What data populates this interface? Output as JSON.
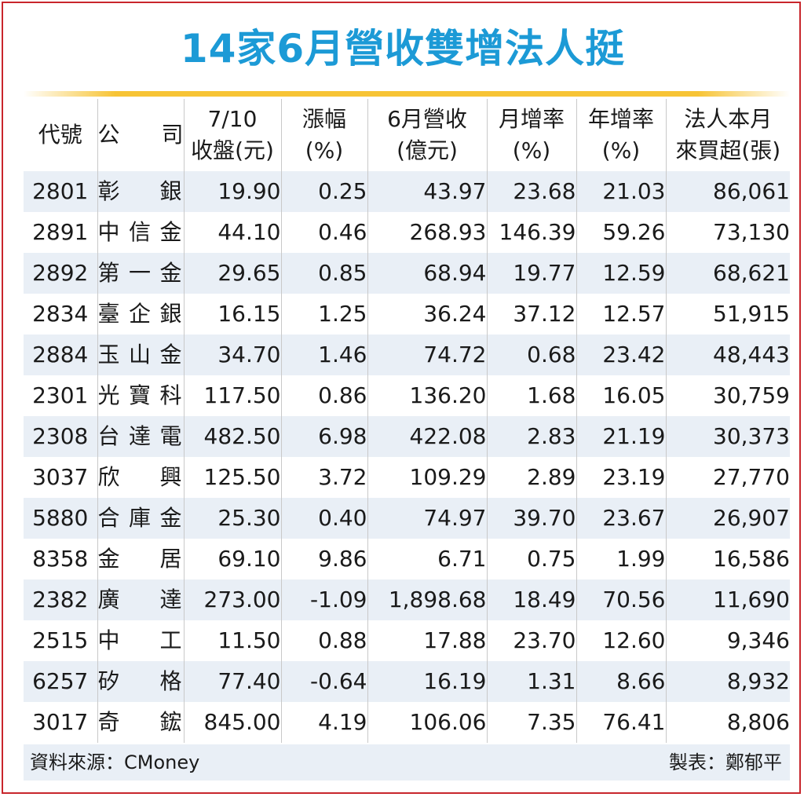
{
  "title": "14家6月營收雙增法人挺",
  "headers": {
    "code": "代號",
    "company": "公　司",
    "close_l1": "7/10",
    "close_l2": "收盤(元)",
    "change_l1": "漲幅",
    "change_l2": "(%)",
    "rev_l1": "6月營收",
    "rev_l2": "(億元)",
    "mom_l1": "月增率",
    "mom_l2": "(%)",
    "yoy_l1": "年增率",
    "yoy_l2": "(%)",
    "inst_l1": "法人本月",
    "inst_l2": "來買超(張)"
  },
  "rows": [
    {
      "code": "2801",
      "name": "彰銀",
      "close": "19.90",
      "change": "0.25",
      "revenue": "43.97",
      "mom": "23.68",
      "yoy": "21.03",
      "inst": "86,061"
    },
    {
      "code": "2891",
      "name": "中信金",
      "close": "44.10",
      "change": "0.46",
      "revenue": "268.93",
      "mom": "146.39",
      "yoy": "59.26",
      "inst": "73,130"
    },
    {
      "code": "2892",
      "name": "第一金",
      "close": "29.65",
      "change": "0.85",
      "revenue": "68.94",
      "mom": "19.77",
      "yoy": "12.59",
      "inst": "68,621"
    },
    {
      "code": "2834",
      "name": "臺企銀",
      "close": "16.15",
      "change": "1.25",
      "revenue": "36.24",
      "mom": "37.12",
      "yoy": "12.57",
      "inst": "51,915"
    },
    {
      "code": "2884",
      "name": "玉山金",
      "close": "34.70",
      "change": "1.46",
      "revenue": "74.72",
      "mom": "0.68",
      "yoy": "23.42",
      "inst": "48,443"
    },
    {
      "code": "2301",
      "name": "光寶科",
      "close": "117.50",
      "change": "0.86",
      "revenue": "136.20",
      "mom": "1.68",
      "yoy": "16.05",
      "inst": "30,759"
    },
    {
      "code": "2308",
      "name": "台達電",
      "close": "482.50",
      "change": "6.98",
      "revenue": "422.08",
      "mom": "2.83",
      "yoy": "21.19",
      "inst": "30,373"
    },
    {
      "code": "3037",
      "name": "欣興",
      "close": "125.50",
      "change": "3.72",
      "revenue": "109.29",
      "mom": "2.89",
      "yoy": "23.19",
      "inst": "27,770"
    },
    {
      "code": "5880",
      "name": "合庫金",
      "close": "25.30",
      "change": "0.40",
      "revenue": "74.97",
      "mom": "39.70",
      "yoy": "23.67",
      "inst": "26,907"
    },
    {
      "code": "8358",
      "name": "金居",
      "close": "69.10",
      "change": "9.86",
      "revenue": "6.71",
      "mom": "0.75",
      "yoy": "1.99",
      "inst": "16,586"
    },
    {
      "code": "2382",
      "name": "廣達",
      "close": "273.00",
      "change": "-1.09",
      "revenue": "1,898.68",
      "mom": "18.49",
      "yoy": "70.56",
      "inst": "11,690"
    },
    {
      "code": "2515",
      "name": "中工",
      "close": "11.50",
      "change": "0.88",
      "revenue": "17.88",
      "mom": "23.70",
      "yoy": "12.60",
      "inst": "9,346"
    },
    {
      "code": "6257",
      "name": "矽格",
      "close": "77.40",
      "change": "-0.64",
      "revenue": "16.19",
      "mom": "1.31",
      "yoy": "8.66",
      "inst": "8,932"
    },
    {
      "code": "3017",
      "name": "奇鋐",
      "close": "845.00",
      "change": "4.19",
      "revenue": "106.06",
      "mom": "7.35",
      "yoy": "76.41",
      "inst": "8,806"
    }
  ],
  "footer": {
    "source": "資料來源：CMoney",
    "maker": "製表：鄭郁平"
  },
  "colors": {
    "title": "#1c9ad6",
    "border": "#c8262c",
    "rule": "#f7c435",
    "stripe": "#e9eff6"
  }
}
